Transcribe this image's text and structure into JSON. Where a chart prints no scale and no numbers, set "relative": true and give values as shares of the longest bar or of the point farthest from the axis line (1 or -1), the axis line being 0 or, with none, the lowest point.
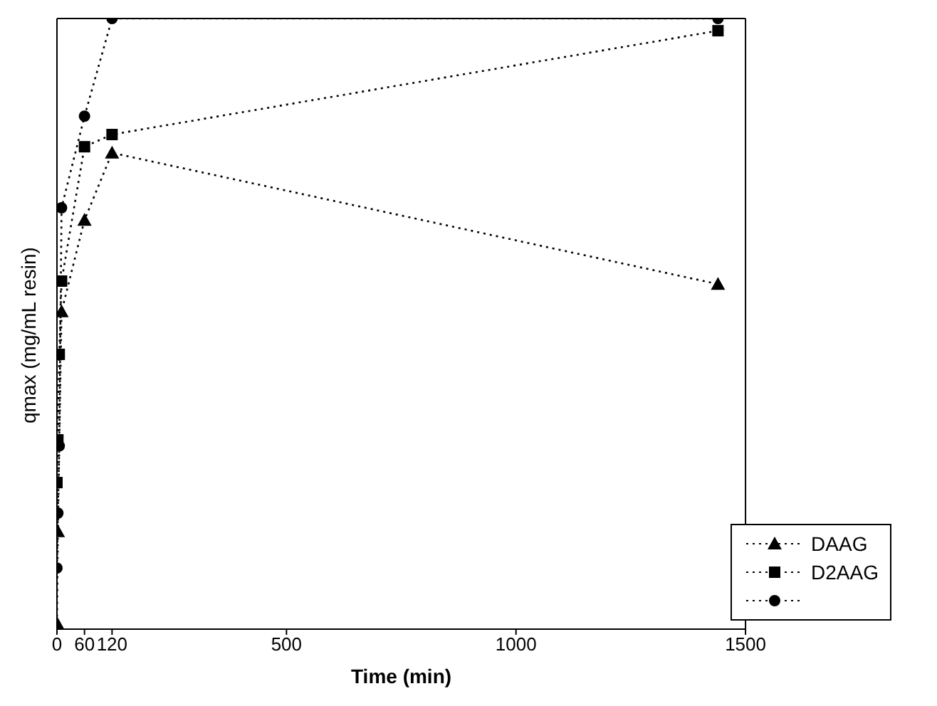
{
  "chart_data": {
    "type": "line",
    "relative": true,
    "xlabel": "Time (min)",
    "ylabel": "qmax (mg/mL resin)",
    "xlim": [
      0,
      1500
    ],
    "xticks": [
      0,
      60,
      120,
      500,
      1000,
      1500
    ],
    "legend": "bottom right",
    "line_style": "dotted",
    "grid": false,
    "series": [
      {
        "name": "DAAG",
        "color": "#000000",
        "marker": "triangle",
        "x": [
          0,
          2,
          10,
          60,
          120,
          1440
        ],
        "values": [
          0.01,
          0.16,
          0.52,
          0.67,
          0.78,
          0.565
        ]
      },
      {
        "name": "D2AAG",
        "color": "#000000",
        "marker": "square",
        "x": [
          0,
          2,
          5,
          10,
          60,
          120,
          1440
        ],
        "values": [
          0.24,
          0.31,
          0.45,
          0.57,
          0.79,
          0.81,
          0.98
        ]
      },
      {
        "color": "#000000",
        "marker": "circle",
        "x": [
          0,
          2,
          5,
          10,
          60,
          120,
          1440
        ],
        "values": [
          0.1,
          0.19,
          0.3,
          0.69,
          0.84,
          1.0,
          1.0
        ]
      }
    ]
  }
}
